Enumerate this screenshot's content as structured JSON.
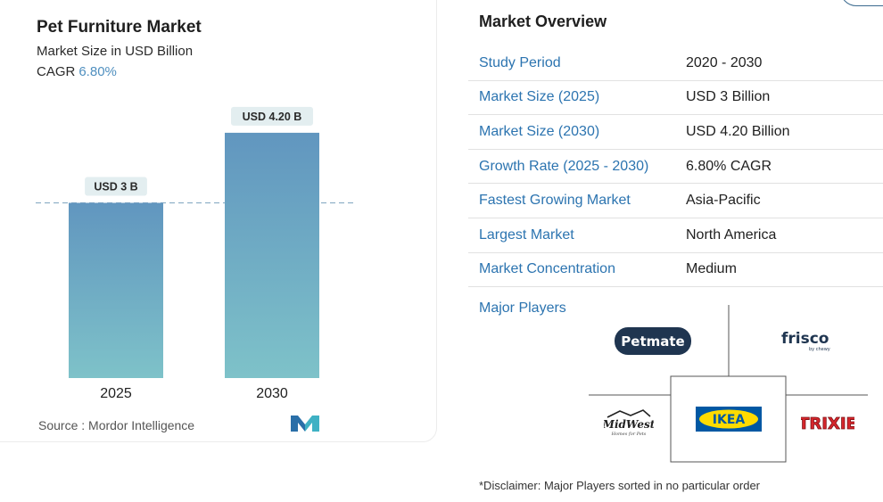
{
  "chart": {
    "title": "Pet Furniture Market",
    "subtitle": "Market Size in USD Billion",
    "cagr_label": "CAGR",
    "cagr_value": "6.80%",
    "source": "Source :  Mordor Intelligence"
  },
  "chart_data": {
    "type": "bar",
    "categories": [
      "2025",
      "2030"
    ],
    "values": [
      3.0,
      4.2
    ],
    "data_labels": [
      "USD 3 B",
      "USD 4.20 B"
    ],
    "title": "Pet Furniture Market",
    "ylabel": "Market Size in USD Billion",
    "ylim": [
      0,
      4.9
    ],
    "reference_line": 3.0,
    "grid": false,
    "colors": {
      "bar_top": "#6196bf",
      "bar_bottom": "#7ec2c9",
      "label_bg": "#e3eef0",
      "dash": "#8fb0c8"
    }
  },
  "overview": {
    "title": "Market Overview",
    "rows": [
      {
        "key": "Study Period",
        "value": "2020 - 2030"
      },
      {
        "key": "Market Size (2025)",
        "value": "USD 3 Billion"
      },
      {
        "key": "Market Size (2030)",
        "value": "USD 4.20 Billion"
      },
      {
        "key": "Growth Rate (2025 - 2030)",
        "value": "6.80% CAGR"
      },
      {
        "key": "Fastest Growing Market",
        "value": "Asia-Pacific"
      },
      {
        "key": "Largest Market",
        "value": "North America"
      },
      {
        "key": "Market Concentration",
        "value": "Medium"
      }
    ],
    "major_players_label": "Major Players",
    "players": [
      "Petmate",
      "frisco",
      "MidWest",
      "IKEA",
      "TRIXIE"
    ],
    "player_sublines": {
      "frisco": "by chewy",
      "midwest": "Homes for Pets"
    },
    "disclaimer": "*Disclaimer: Major Players sorted in no particular order"
  },
  "colors": {
    "accent": "#2c74b0",
    "ikea_blue": "#0058a3",
    "ikea_yellow": "#ffdb00",
    "trixie_red": "#d7262c",
    "petmate_navy": "#1f3550"
  }
}
